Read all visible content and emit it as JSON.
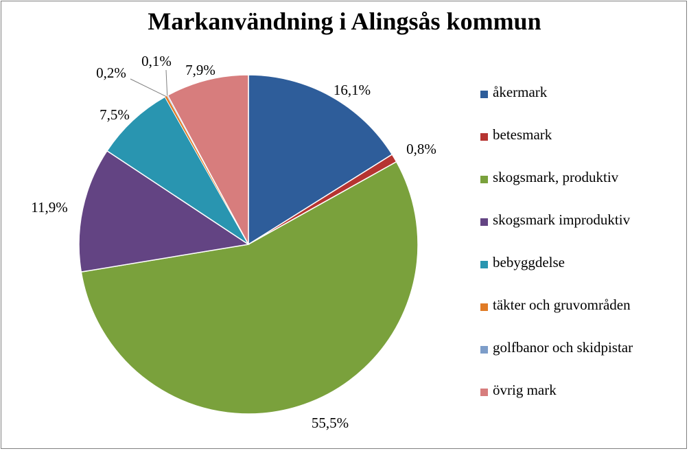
{
  "chart_data": {
    "type": "pie",
    "title": "Markanvändning i Alingsås kommun",
    "categories": [
      "åkermark",
      "betesmark",
      "skogsmark, produktiv",
      "skogsmark improduktiv",
      "bebyggdelse",
      "täkter och gruvområden",
      "golfbanor och skidpistar",
      "övrig mark"
    ],
    "values": [
      16.1,
      0.8,
      55.5,
      11.9,
      7.5,
      0.2,
      0.1,
      7.9
    ],
    "labels": [
      "16,1%",
      "0,8%",
      "55,5%",
      "11,9%",
      "7,5%",
      "0,2%",
      "0,1%",
      "7,9%"
    ],
    "colors": [
      "#2e5d9a",
      "#b63431",
      "#7aa13c",
      "#634483",
      "#2995b0",
      "#e07b25",
      "#7d9dc9",
      "#d77d7d"
    ],
    "start": "top, clockwise",
    "legend": "right"
  }
}
